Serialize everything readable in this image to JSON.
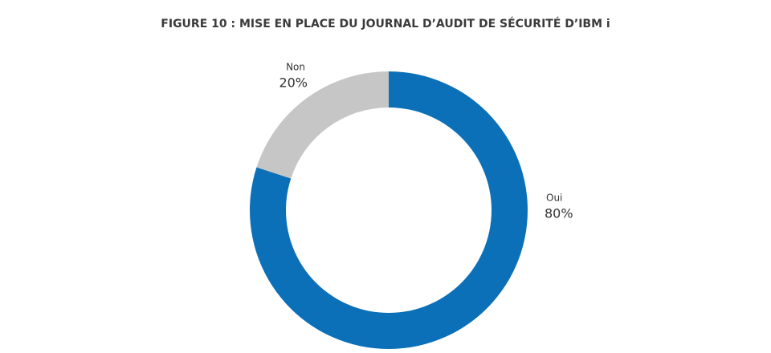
{
  "chart_data": {
    "type": "donut",
    "title": "FIGURE 10 : MISE EN PLACE DU JOURNAL D’AUDIT DE SÉCURITÉ D’IBM i",
    "categories": [
      "Oui",
      "Non"
    ],
    "values": [
      80,
      20
    ],
    "value_labels": [
      "80%",
      "20%"
    ],
    "colors": [
      "#0b70b8",
      "#c6c6c6"
    ]
  }
}
